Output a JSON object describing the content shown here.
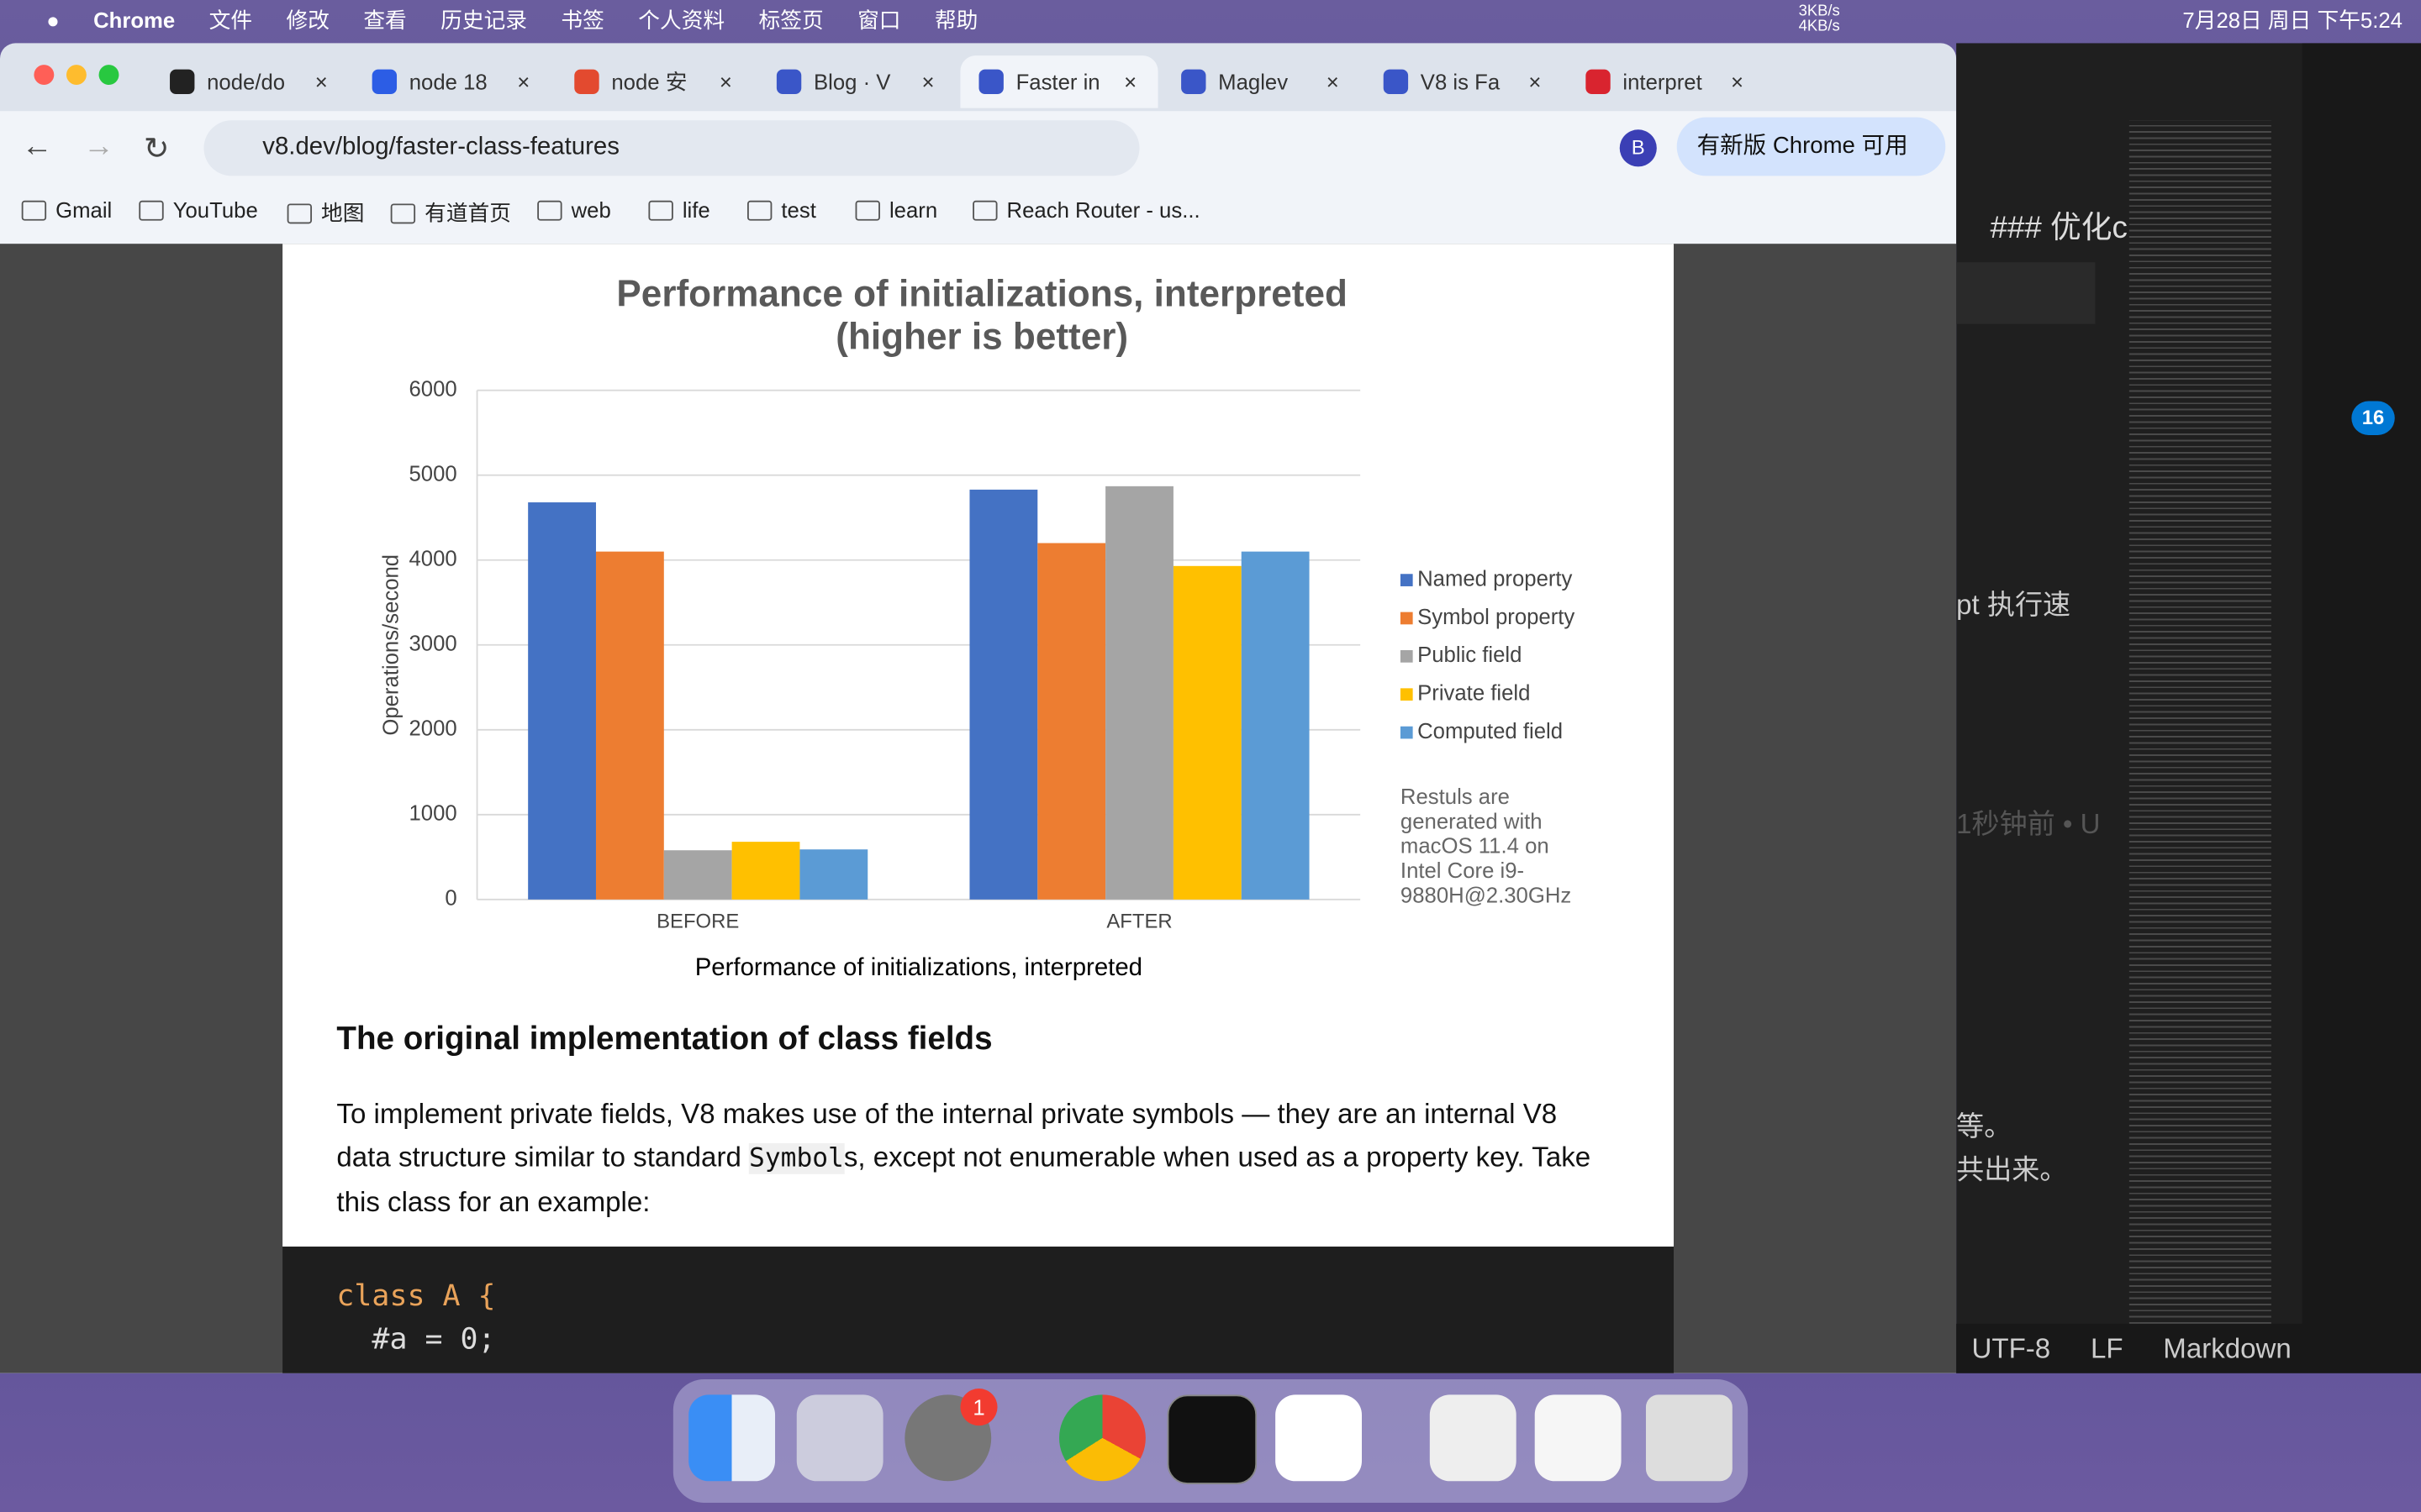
{
  "menu_bar": {
    "app": "Chrome",
    "items": [
      "文件",
      "修改",
      "查看",
      "历史记录",
      "书签",
      "个人资料",
      "标签页",
      "窗口",
      "帮助"
    ],
    "net_up": "3KB/s",
    "net_down": "4KB/s",
    "clock": "7月28日 周日 下午5:24"
  },
  "tabs": [
    "node/do",
    "node 18",
    "node 安",
    "Blog · V",
    "Faster in",
    "Maglev",
    "V8 is Fa",
    "interpret"
  ],
  "address": "v8.dev/blog/faster-class-features",
  "update_button": "有新版 Chrome 可用",
  "profile": "B",
  "bookmarks": [
    "Gmail",
    "YouTube",
    "地图",
    "有道首页",
    "web",
    "life",
    "test",
    "learn",
    "Reach Router - us..."
  ],
  "chart_data": {
    "type": "bar",
    "title": "Performance of initializations, interpreted",
    "subtitle": "(higher is better)",
    "x_label": "Performance of initializations, interpreted",
    "y_label": "Operations/second",
    "categories": [
      "BEFORE",
      "AFTER"
    ],
    "series": [
      {
        "name": "Named property",
        "color": "#4472c4",
        "values": [
          4680,
          4830
        ]
      },
      {
        "name": "Symbol property",
        "color": "#ed7d31",
        "values": [
          4100,
          4200
        ]
      },
      {
        "name": "Public field",
        "color": "#a5a5a5",
        "values": [
          580,
          4870
        ]
      },
      {
        "name": "Private field",
        "color": "#ffc000",
        "values": [
          680,
          3930
        ]
      },
      {
        "name": "Computed field",
        "color": "#5b9bd5",
        "values": [
          590,
          4100
        ]
      }
    ],
    "ylim": [
      0,
      6000
    ],
    "yticks": [
      0,
      1000,
      2000,
      3000,
      4000,
      5000,
      6000
    ],
    "grid": true,
    "legend": "right",
    "annotation": "Restuls are generated with macOS 11.4 on Intel Core i9-9880H@2.30GHz"
  },
  "article": {
    "heading": "The original implementation of class fields",
    "paragraph": {
      "before": "To implement private fields, V8 makes use of the internal private symbols — they are an internal V8 data structure similar to standard ",
      "code": "Symbol",
      "after": "s, except not enumerable when used as a property key. Take this class for an example:"
    },
    "code_lines": [
      "class A {",
      "  #a = 0;"
    ]
  },
  "editor": {
    "heading": "### 优化class fields",
    "snippets": [
      "pt 执行速",
      "1秒钟前 • U",
      "等。",
      "共出来。"
    ],
    "badge": "16",
    "status": [
      "UTF-8",
      "LF",
      "Markdown"
    ]
  },
  "dock": {
    "badge": "1"
  }
}
